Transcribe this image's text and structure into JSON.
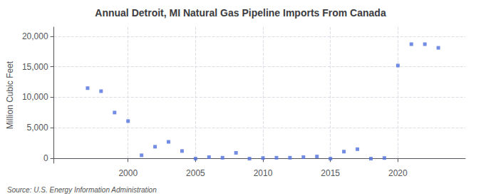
{
  "chart_data": {
    "type": "scatter",
    "title": "Annual Detroit, MI Natural Gas Pipeline Imports From Canada",
    "ylabel": "Million Cubic Feet",
    "annotations": [
      "Source: U.S. Energy Information Administration"
    ],
    "x": [
      1997,
      1998,
      1999,
      2000,
      2001,
      2002,
      2003,
      2004,
      2005,
      2006,
      2007,
      2008,
      2009,
      2010,
      2011,
      2012,
      2013,
      2014,
      2015,
      2016,
      2017,
      2018,
      2019,
      2020,
      2021,
      2022,
      2023
    ],
    "values": [
      11500,
      11000,
      7500,
      6100,
      500,
      1900,
      2700,
      1200,
      -50,
      200,
      100,
      900,
      -50,
      50,
      100,
      100,
      200,
      300,
      -50,
      1100,
      1500,
      -50,
      50,
      15200,
      18700,
      18700,
      18100
    ],
    "marker": "square",
    "xlim": [
      1994.5,
      2025
    ],
    "ylim": [
      -800,
      21500
    ],
    "xticks": [
      2000,
      2005,
      2010,
      2015,
      2020
    ],
    "yticks": [
      0,
      {
        "value": 5000,
        "label": "5,000"
      },
      {
        "value": 10000,
        "label": "10,000"
      },
      {
        "value": 15000,
        "label": "15,000"
      },
      {
        "value": 20000,
        "label": "20,000"
      }
    ],
    "grid": true
  }
}
